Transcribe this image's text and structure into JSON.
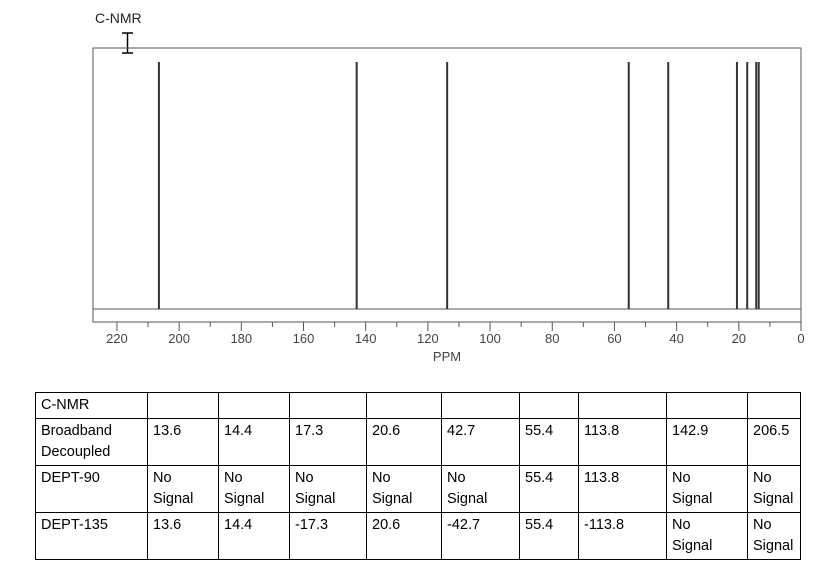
{
  "chart_data": {
    "type": "spectrum",
    "title": "C-NMR",
    "xlabel": "PPM",
    "x": [
      13.6,
      14.4,
      17.3,
      20.6,
      42.7,
      55.4,
      113.8,
      142.9,
      206.5
    ],
    "color": "#333333",
    "xlim": [
      227.7,
      0
    ],
    "xticks": [
      220,
      200,
      180,
      160,
      140,
      120,
      100,
      80,
      60,
      40,
      20,
      0
    ],
    "xminorticks": [
      210,
      190,
      170,
      150,
      130,
      110,
      90,
      70,
      50,
      30,
      10
    ]
  },
  "table": {
    "rows": [
      [
        "C-NMR"
      ],
      [
        "Broadband Decoupled",
        "13.6",
        "14.4",
        "17.3",
        "20.6",
        "42.7",
        "55.4",
        "113.8",
        "142.9",
        "206.5"
      ],
      [
        "DEPT-90",
        "No Signal",
        "No Signal",
        "No Signal",
        "No Signal",
        "No Signal",
        "55.4",
        "113.8",
        "No Signal",
        "No Signal"
      ],
      [
        "DEPT-135",
        "13.6",
        "14.4",
        "-17.3",
        "20.6",
        "-42.7",
        "55.4",
        "-113.8",
        "No Signal",
        "No Signal"
      ]
    ]
  }
}
